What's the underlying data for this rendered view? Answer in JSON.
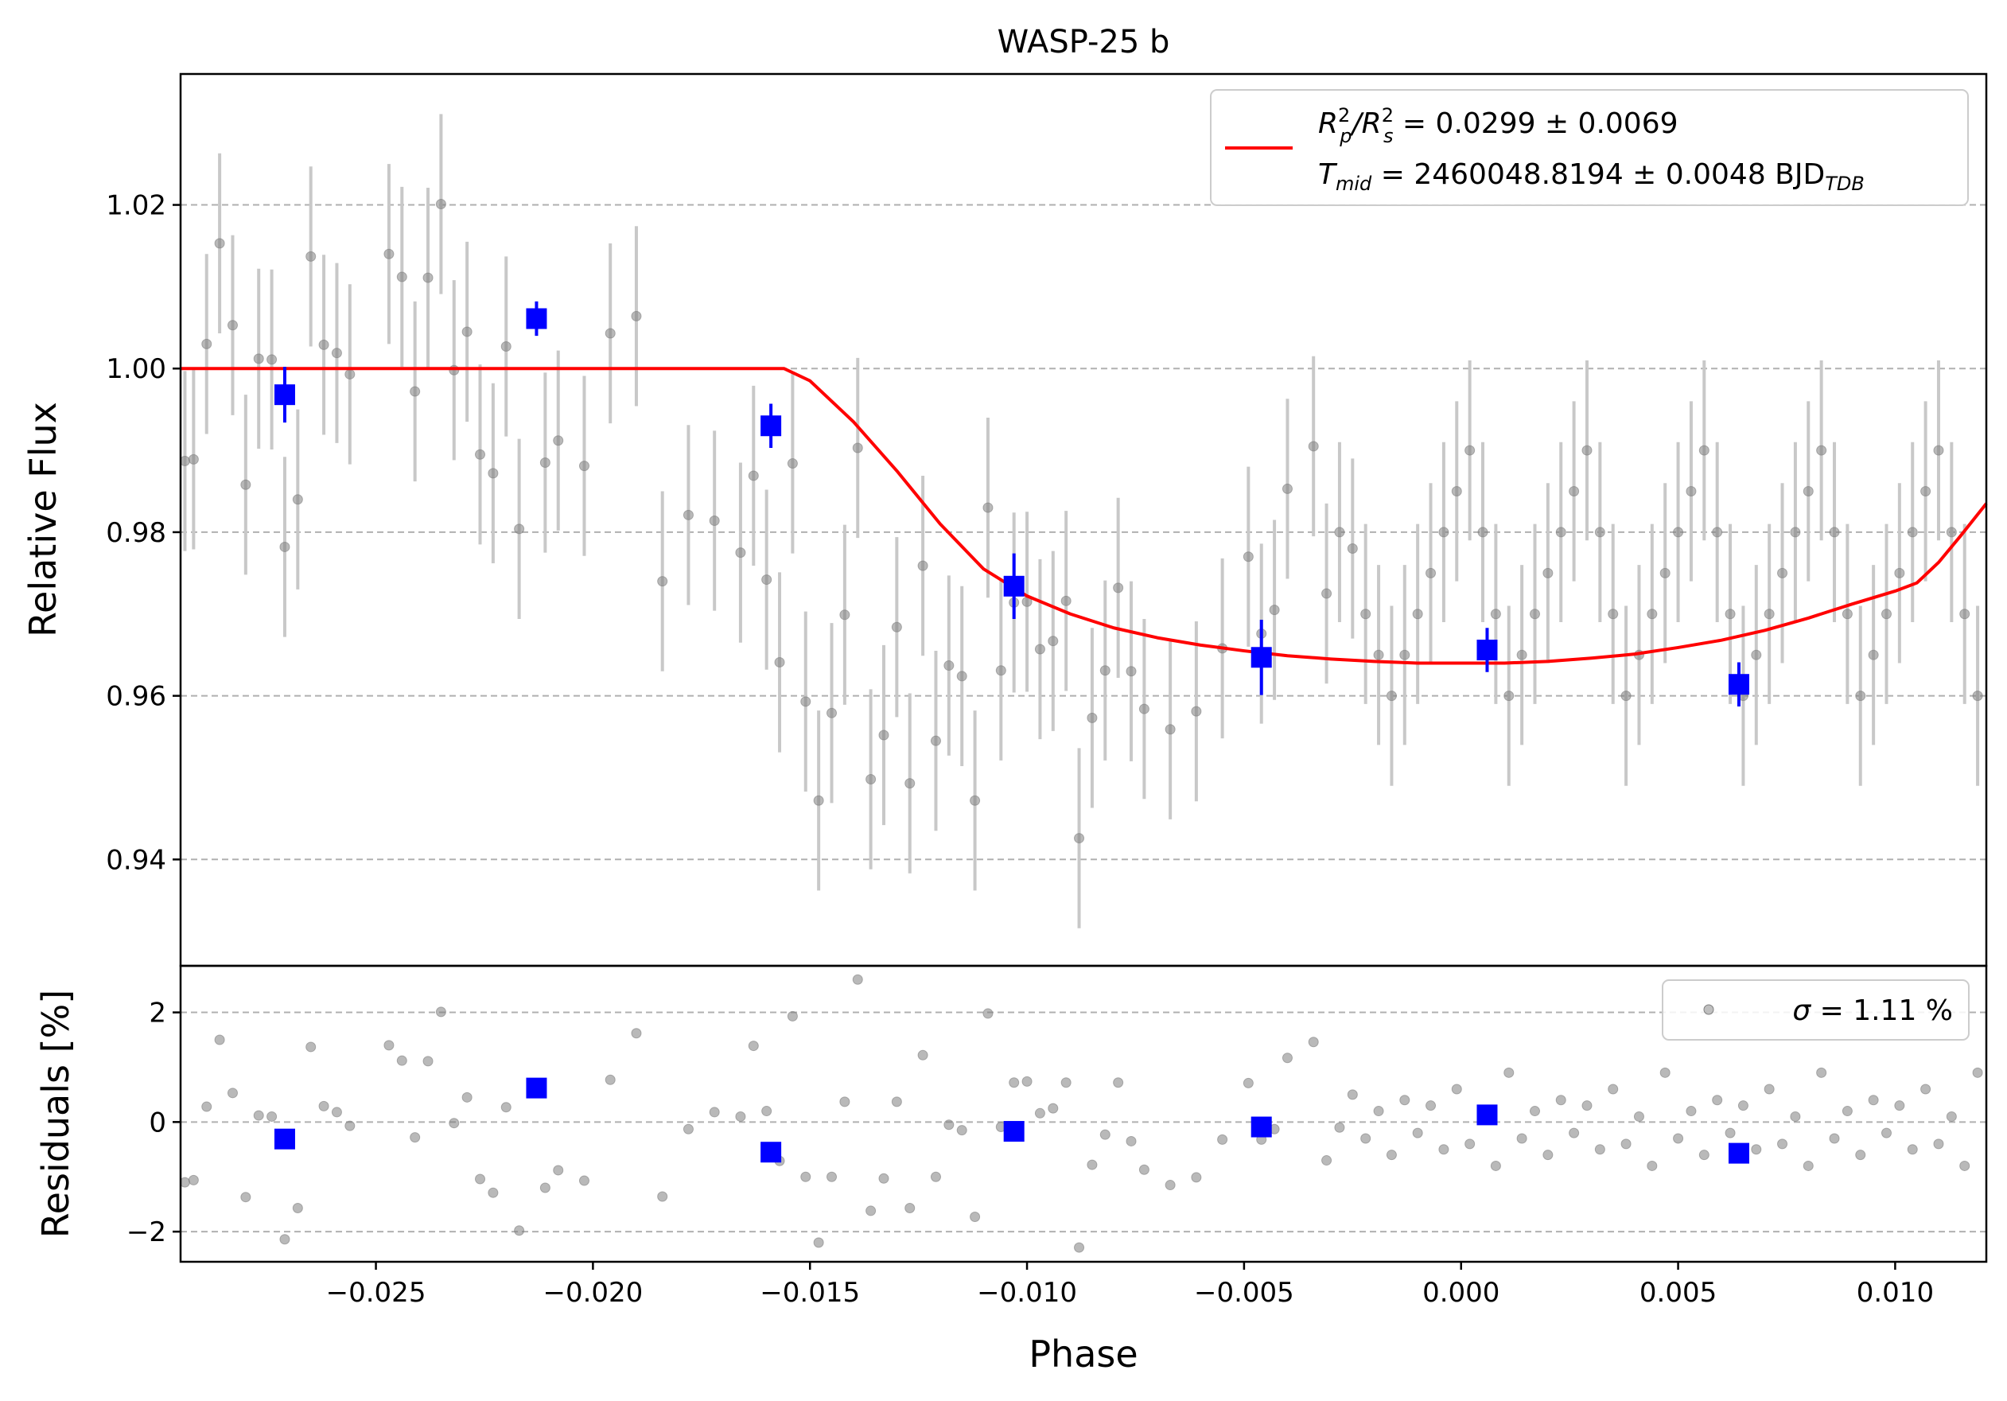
{
  "chart_data": [
    {
      "type": "scatter",
      "title": "WASP-25 b",
      "xlabel": "",
      "ylabel": "Relative Flux",
      "xlim": [
        -0.0295,
        0.0121
      ],
      "ylim": [
        0.927,
        1.036
      ],
      "yticks": [
        0.94,
        0.96,
        0.98,
        1.0,
        1.02
      ],
      "ytick_labels": [
        "0.94",
        "0.96",
        "0.98",
        "1.00",
        "1.02"
      ],
      "grid": "horizontal dashed",
      "legend_position": "top-right",
      "legend": {
        "line1_a": "R",
        "line1_sup1": "2",
        "line1_sub1": "p",
        "line1_slash": "/R",
        "line1_sup2": "2",
        "line1_sub2": "s",
        "line1_value": " = 0.0299 ± 0.0069",
        "line2_T": "T",
        "line2_sub": "mid",
        "line2_value": " = 2460048.8194 ± 0.0048 BJD",
        "line2_sub2": "TDB"
      },
      "colors": {
        "data": "#808080",
        "errorbar": "#c8c8c8",
        "binned": "#0000ff",
        "model": "#ff0000",
        "grid": "#b0b0b0"
      },
      "series": [
        {
          "kind": "raw",
          "x": [
            -0.0294,
            -0.0292,
            -0.0289,
            -0.0286,
            -0.0283,
            -0.028,
            -0.0277,
            -0.0274,
            -0.0271,
            -0.0268,
            -0.0265,
            -0.0262,
            -0.0259,
            -0.0256,
            -0.0247,
            -0.0244,
            -0.0241,
            -0.0238,
            -0.0235,
            -0.0232,
            -0.0229,
            -0.0226,
            -0.0223,
            -0.022,
            -0.0217,
            -0.0211,
            -0.0208,
            -0.0202,
            -0.0196,
            -0.019,
            -0.0184,
            -0.0178,
            -0.0172,
            -0.0166,
            -0.0163,
            -0.016,
            -0.0157,
            -0.0154,
            -0.0151,
            -0.0148,
            -0.0145,
            -0.0142,
            -0.0139,
            -0.0136,
            -0.0133,
            -0.013,
            -0.0127,
            -0.0124,
            -0.0121,
            -0.0118,
            -0.0115,
            -0.0112,
            -0.0109,
            -0.0106,
            -0.0103,
            -0.01,
            -0.0097,
            -0.0094,
            -0.0091,
            -0.0088,
            -0.0085,
            -0.0082,
            -0.0079,
            -0.0076,
            -0.0073,
            -0.0067,
            -0.0061,
            -0.0055,
            -0.0049,
            -0.0046,
            -0.0043,
            -0.004,
            -0.0034,
            -0.0031,
            -0.0028,
            -0.0025,
            -0.0022,
            -0.0019,
            -0.0016,
            -0.0013,
            -0.001,
            -0.0007,
            -0.0004,
            -0.0001,
            0.0002,
            0.0005,
            0.0008,
            0.0011,
            0.0014,
            0.0017,
            0.002,
            0.0023,
            0.0026,
            0.0029,
            0.0032,
            0.0035,
            0.0038,
            0.0041,
            0.0044,
            0.0047,
            0.005,
            0.0053,
            0.0056,
            0.0059,
            0.0062,
            0.0065,
            0.0068,
            0.0071,
            0.0074,
            0.0077,
            0.008,
            0.0083,
            0.0086,
            0.0089,
            0.0092,
            0.0095,
            0.0098,
            0.0101,
            0.0104,
            0.0107,
            0.011,
            0.0113,
            0.0116,
            0.0119
          ],
          "y": [
            0.9887,
            0.9889,
            1.003,
            1.0153,
            1.0053,
            0.9858,
            1.0012,
            1.0011,
            0.9782,
            0.984,
            1.0137,
            1.0029,
            1.0019,
            0.9993,
            1.014,
            1.0112,
            0.9972,
            1.0111,
            1.0201,
            0.9998,
            1.0045,
            0.9895,
            0.9872,
            1.0027,
            0.9804,
            0.9885,
            0.9912,
            0.9881,
            1.0043,
            1.0064,
            0.974,
            0.9821,
            0.9814,
            0.9775,
            0.9869,
            0.9742,
            0.9641,
            0.9884,
            0.9593,
            0.9472,
            0.9579,
            0.9699,
            0.9903,
            0.9498,
            0.9552,
            0.9684,
            0.9493,
            0.9759,
            0.9545,
            0.9637,
            0.9624,
            0.9472,
            0.983,
            0.9631,
            0.9714,
            0.9715,
            0.9657,
            0.9667,
            0.9716,
            0.9426,
            0.9573,
            0.9631,
            0.9732,
            0.963,
            0.9584,
            0.9559,
            0.9581,
            0.9658,
            0.977,
            0.9676,
            0.9705,
            0.9853,
            0.9905,
            0.9725,
            0.98,
            0.978,
            0.97,
            0.965,
            0.96,
            0.965,
            0.97,
            0.975,
            0.98,
            0.985,
            0.99,
            0.98,
            0.97,
            0.96,
            0.965,
            0.97,
            0.975,
            0.98,
            0.985,
            0.99,
            0.98,
            0.97,
            0.96,
            0.965,
            0.97,
            0.975,
            0.98,
            0.985,
            0.99,
            0.98,
            0.97,
            0.96,
            0.965,
            0.97,
            0.975,
            0.98,
            0.985,
            0.99,
            0.98,
            0.97,
            0.96,
            0.965,
            0.97,
            0.975,
            0.98,
            0.985,
            0.99,
            0.98,
            0.97,
            0.96
          ],
          "yerr": 0.011
        },
        {
          "kind": "binned",
          "x": [
            -0.0271,
            -0.0213,
            -0.0159,
            -0.0103,
            -0.0046,
            0.0006,
            0.0064
          ],
          "y": [
            0.9968,
            1.0061,
            0.993,
            0.9734,
            0.9647,
            0.9656,
            0.9614
          ],
          "yerr": [
            0.0034,
            0.0021,
            0.0027,
            0.004,
            0.0046,
            0.0027,
            0.0027
          ]
        },
        {
          "kind": "model",
          "x": [
            -0.0295,
            -0.0156,
            -0.015,
            -0.014,
            -0.013,
            -0.012,
            -0.011,
            -0.01,
            -0.009,
            -0.008,
            -0.007,
            -0.006,
            -0.005,
            -0.004,
            -0.003,
            -0.002,
            -0.001,
            0.0,
            0.001,
            0.002,
            0.003,
            0.004,
            0.005,
            0.006,
            0.007,
            0.008,
            0.009,
            0.01,
            0.0105,
            0.011,
            0.0115,
            0.0121
          ],
          "y": [
            1.0,
            1.0,
            0.9985,
            0.9935,
            0.9875,
            0.981,
            0.9755,
            0.9722,
            0.97,
            0.9683,
            0.9671,
            0.9662,
            0.9655,
            0.9649,
            0.9645,
            0.9642,
            0.964,
            0.964,
            0.964,
            0.9642,
            0.9646,
            0.9651,
            0.9659,
            0.9668,
            0.968,
            0.9695,
            0.9712,
            0.9728,
            0.9738,
            0.9763,
            0.9795,
            0.9835
          ]
        }
      ]
    },
    {
      "type": "scatter",
      "title": "",
      "xlabel": "Phase",
      "ylabel": "Residuals [%]",
      "xlim": [
        -0.0295,
        0.0121
      ],
      "ylim": [
        -2.55,
        2.85
      ],
      "yticks": [
        -2,
        0,
        2
      ],
      "ytick_labels": [
        "−2",
        "0",
        "2"
      ],
      "xticks": [
        -0.025,
        -0.02,
        -0.015,
        -0.01,
        -0.005,
        0.0,
        0.005,
        0.01
      ],
      "xtick_labels": [
        "−0.025",
        "−0.020",
        "−0.015",
        "−0.010",
        "−0.005",
        "0.000",
        "0.005",
        "0.010"
      ],
      "grid": "horizontal dashed",
      "legend_position": "top-right",
      "legend": {
        "sigma": "σ",
        "text": " = 1.11 %"
      },
      "series": [
        {
          "kind": "raw",
          "x": [
            -0.0294,
            -0.0292,
            -0.0289,
            -0.0286,
            -0.0283,
            -0.028,
            -0.0277,
            -0.0274,
            -0.0271,
            -0.0268,
            -0.0265,
            -0.0262,
            -0.0259,
            -0.0256,
            -0.0247,
            -0.0244,
            -0.0241,
            -0.0238,
            -0.0235,
            -0.0232,
            -0.0229,
            -0.0226,
            -0.0223,
            -0.022,
            -0.0217,
            -0.0211,
            -0.0208,
            -0.0202,
            -0.0196,
            -0.019,
            -0.0184,
            -0.0178,
            -0.0172,
            -0.0166,
            -0.0163,
            -0.016,
            -0.0157,
            -0.0154,
            -0.0151,
            -0.0148,
            -0.0145,
            -0.0142,
            -0.0139,
            -0.0136,
            -0.0133,
            -0.013,
            -0.0127,
            -0.0124,
            -0.0121,
            -0.0118,
            -0.0115,
            -0.0112,
            -0.0109,
            -0.0106,
            -0.0103,
            -0.01,
            -0.0097,
            -0.0094,
            -0.0091,
            -0.0088,
            -0.0085,
            -0.0082,
            -0.0079,
            -0.0076,
            -0.0073,
            -0.0067,
            -0.0061,
            -0.0055,
            -0.0049,
            -0.0046,
            -0.0043,
            -0.004,
            -0.0034,
            -0.0031,
            -0.0028,
            -0.0025,
            -0.0022,
            -0.0019,
            -0.0016,
            -0.0013,
            -0.001,
            -0.0007,
            -0.0004,
            -0.0001,
            0.0002,
            0.0005,
            0.0008,
            0.0011,
            0.0014,
            0.0017,
            0.002,
            0.0023,
            0.0026,
            0.0029,
            0.0032,
            0.0035,
            0.0038,
            0.0041,
            0.0044,
            0.0047,
            0.005,
            0.0053,
            0.0056,
            0.0059,
            0.0062,
            0.0065,
            0.0068,
            0.0071,
            0.0074,
            0.0077,
            0.008,
            0.0083,
            0.0086,
            0.0089,
            0.0092,
            0.0095,
            0.0098,
            0.0101,
            0.0104,
            0.0107,
            0.011,
            0.0113,
            0.0116,
            0.0119
          ],
          "y": [
            -1.1,
            -1.06,
            0.28,
            1.5,
            0.53,
            -1.37,
            0.12,
            0.1,
            -2.14,
            -1.57,
            1.37,
            0.29,
            0.18,
            -0.07,
            1.4,
            1.12,
            -0.28,
            1.11,
            2.01,
            -0.02,
            0.45,
            -1.04,
            -1.29,
            0.27,
            -1.98,
            -1.2,
            -0.88,
            -1.07,
            0.77,
            1.62,
            -1.36,
            -0.13,
            0.18,
            0.1,
            1.39,
            0.2,
            -0.71,
            1.93,
            -1.0,
            -2.2,
            -1.0,
            0.37,
            2.6,
            -1.62,
            -1.03,
            0.37,
            -1.57,
            1.22,
            -1.0,
            -0.05,
            -0.15,
            -1.73,
            1.98,
            -0.09,
            0.72,
            0.74,
            0.16,
            0.25,
            0.72,
            -2.29,
            -0.78,
            -0.23,
            0.72,
            -0.35,
            -0.87,
            -1.15,
            -1.01,
            -0.32,
            0.71,
            -0.32,
            -0.13,
            1.17,
            1.46,
            -0.7,
            -0.1,
            0.5,
            -0.3,
            0.2,
            -0.6,
            0.4,
            -0.2,
            0.3,
            -0.5,
            0.6,
            -0.4,
            0.1,
            -0.8,
            0.9,
            -0.3,
            0.2,
            -0.6,
            0.4,
            -0.2,
            0.3,
            -0.5,
            0.6,
            -0.4,
            0.1,
            -0.8,
            0.9,
            -0.3,
            0.2,
            -0.6,
            0.4,
            -0.2,
            0.3,
            -0.5,
            0.6,
            -0.4,
            0.1,
            -0.8,
            0.9,
            -0.3,
            0.2,
            -0.6,
            0.4,
            -0.2,
            0.3,
            -0.5,
            0.6,
            -0.4,
            0.1,
            -0.8,
            0.9
          ]
        },
        {
          "kind": "binned",
          "x": [
            -0.0271,
            -0.0213,
            -0.0159,
            -0.0103,
            -0.0046,
            0.0006,
            0.0064
          ],
          "y": [
            -0.31,
            0.62,
            -0.55,
            -0.17,
            -0.09,
            0.13,
            -0.57
          ]
        }
      ]
    }
  ]
}
